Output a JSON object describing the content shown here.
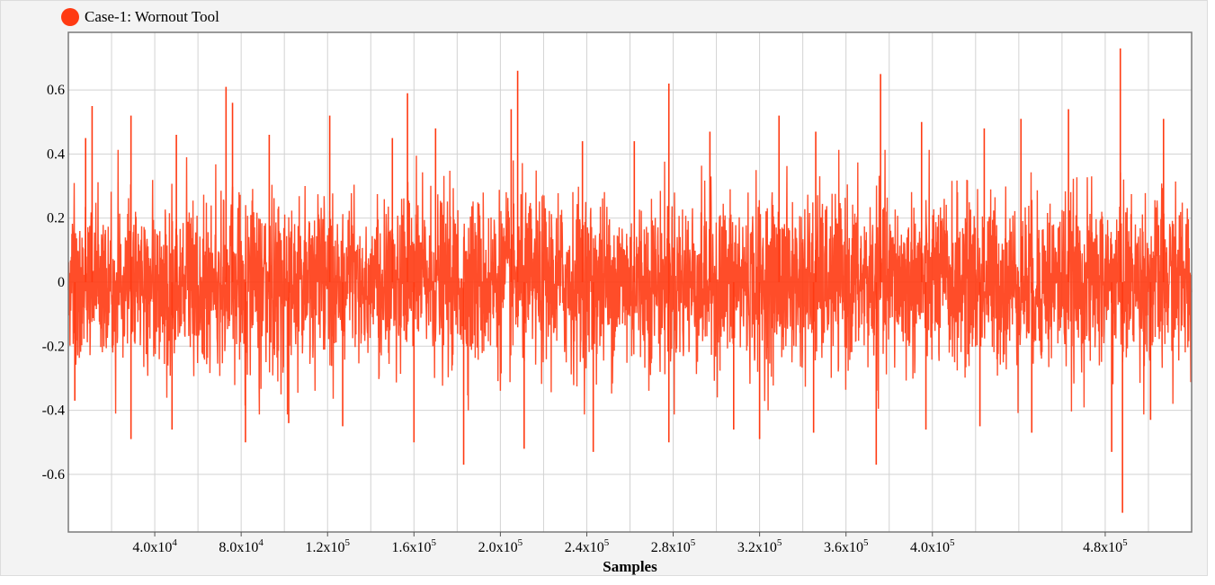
{
  "colors": {
    "series": "#ff3a12",
    "grid": "#d2d2d2",
    "plot_background": "#ffffff",
    "frame_background": "#f3f3f3"
  },
  "chart_data": {
    "type": "line",
    "title": "",
    "xlabel": "Samples",
    "ylabel": "",
    "xlim": [
      0,
      520000
    ],
    "ylim": [
      -0.78,
      0.78
    ],
    "grid": true,
    "legend_position": "top-left",
    "x_tick_labels": [
      {
        "value": 40000,
        "label": "4.0x10",
        "exp": "4"
      },
      {
        "value": 80000,
        "label": "8.0x10",
        "exp": "4"
      },
      {
        "value": 120000,
        "label": "1.2x10",
        "exp": "5"
      },
      {
        "value": 160000,
        "label": "1.6x10",
        "exp": "5"
      },
      {
        "value": 200000,
        "label": "2.0x10",
        "exp": "5"
      },
      {
        "value": 240000,
        "label": "2.4x10",
        "exp": "5"
      },
      {
        "value": 280000,
        "label": "2.8x10",
        "exp": "5"
      },
      {
        "value": 320000,
        "label": "3.2x10",
        "exp": "5"
      },
      {
        "value": 360000,
        "label": "3.6x10",
        "exp": "5"
      },
      {
        "value": 400000,
        "label": "4.0x10",
        "exp": "5"
      },
      {
        "value": 480000,
        "label": "4.8x10",
        "exp": "5"
      }
    ],
    "x_gridlines": [
      20000,
      40000,
      60000,
      80000,
      100000,
      120000,
      140000,
      160000,
      180000,
      200000,
      220000,
      240000,
      260000,
      280000,
      300000,
      320000,
      340000,
      360000,
      380000,
      400000,
      420000,
      440000,
      460000,
      480000,
      500000
    ],
    "y_ticks": [
      {
        "value": 0.6,
        "label": "0.6"
      },
      {
        "value": 0.4,
        "label": "0.4"
      },
      {
        "value": 0.2,
        "label": "0.2"
      },
      {
        "value": 0,
        "label": "0"
      },
      {
        "value": -0.2,
        "label": "-0.2"
      },
      {
        "value": -0.4,
        "label": "-0.4"
      },
      {
        "value": -0.6,
        "label": "-0.6"
      }
    ],
    "series": [
      {
        "name": "Case-1: Wornout Tool",
        "samples": 520000,
        "typical_band": [
          -0.35,
          0.35
        ],
        "peaks_max": [
          [
            8000,
            0.45
          ],
          [
            11000,
            0.55
          ],
          [
            29000,
            0.52
          ],
          [
            50000,
            0.46
          ],
          [
            73000,
            0.61
          ],
          [
            76000,
            0.56
          ],
          [
            93000,
            0.46
          ],
          [
            121000,
            0.52
          ],
          [
            150000,
            0.45
          ],
          [
            157000,
            0.59
          ],
          [
            170000,
            0.48
          ],
          [
            205000,
            0.54
          ],
          [
            208000,
            0.66
          ],
          [
            238000,
            0.44
          ],
          [
            262000,
            0.44
          ],
          [
            278000,
            0.62
          ],
          [
            297000,
            0.47
          ],
          [
            329000,
            0.52
          ],
          [
            346000,
            0.47
          ],
          [
            376000,
            0.65
          ],
          [
            395000,
            0.5
          ],
          [
            424000,
            0.48
          ],
          [
            441000,
            0.51
          ],
          [
            463000,
            0.54
          ],
          [
            487000,
            0.73
          ],
          [
            507000,
            0.51
          ]
        ],
        "peaks_min": [
          [
            3000,
            -0.37
          ],
          [
            29000,
            -0.49
          ],
          [
            48000,
            -0.46
          ],
          [
            82000,
            -0.5
          ],
          [
            102000,
            -0.44
          ],
          [
            127000,
            -0.45
          ],
          [
            160000,
            -0.5
          ],
          [
            183000,
            -0.57
          ],
          [
            211000,
            -0.52
          ],
          [
            243000,
            -0.53
          ],
          [
            278000,
            -0.5
          ],
          [
            308000,
            -0.46
          ],
          [
            320000,
            -0.49
          ],
          [
            345000,
            -0.47
          ],
          [
            374000,
            -0.57
          ],
          [
            397000,
            -0.46
          ],
          [
            422000,
            -0.45
          ],
          [
            446000,
            -0.47
          ],
          [
            483000,
            -0.53
          ],
          [
            488000,
            -0.72
          ],
          [
            501000,
            -0.43
          ]
        ]
      }
    ]
  }
}
